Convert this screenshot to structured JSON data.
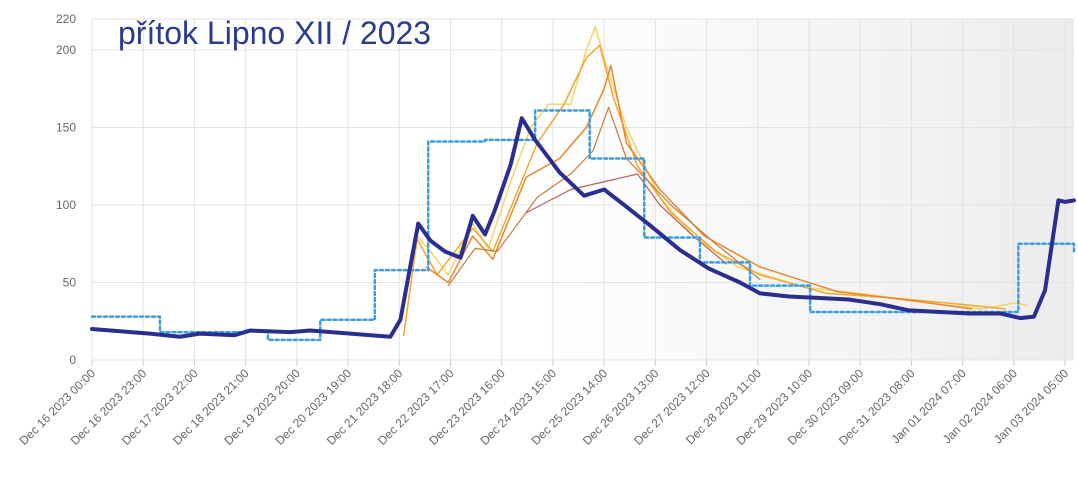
{
  "chart_data": {
    "type": "line",
    "title": "přítok Lipno XII / 2023",
    "xlim": [
      0,
      441
    ],
    "xticks": [
      {
        "value": 0,
        "label": "Dec 16 2023 00:00"
      },
      {
        "value": 23,
        "label": "Dec 16 2023 23:00"
      },
      {
        "value": 46,
        "label": "Dec 17 2023 22:00"
      },
      {
        "value": 69,
        "label": "Dec 18 2023 21:00"
      },
      {
        "value": 92,
        "label": "Dec 19 2023 20:00"
      },
      {
        "value": 115,
        "label": "Dec 20 2023 19:00"
      },
      {
        "value": 138,
        "label": "Dec 21 2023 18:00"
      },
      {
        "value": 161,
        "label": "Dec 22 2023 17:00"
      },
      {
        "value": 184,
        "label": "Dec 23 2023 16:00"
      },
      {
        "value": 207,
        "label": "Dec 24 2023 15:00"
      },
      {
        "value": 230,
        "label": "Dec 25 2023 14:00"
      },
      {
        "value": 253,
        "label": "Dec 26 2023 13:00"
      },
      {
        "value": 276,
        "label": "Dec 27 2023 12:00"
      },
      {
        "value": 299,
        "label": "Dec 28 2023 11:00"
      },
      {
        "value": 322,
        "label": "Dec 29 2023 10:00"
      },
      {
        "value": 345,
        "label": "Dec 30 2023 09:00"
      },
      {
        "value": 368,
        "label": "Dec 31 2023 08:00"
      },
      {
        "value": 391,
        "label": "Jan 01 2024 07:00"
      },
      {
        "value": 414,
        "label": "Jan 02 2024 06:00"
      },
      {
        "value": 437,
        "label": "Jan 03 2024 05:00"
      }
    ],
    "ylim": [
      0,
      220
    ],
    "yticks": [
      0,
      50,
      100,
      150,
      200,
      220
    ],
    "grid": true,
    "series": [
      {
        "color": "#f5d36b",
        "width": 1.5,
        "x": [
          140,
          146,
          152,
          160,
          171,
          178,
          188,
          197,
          205,
          215,
          222,
          226,
          231,
          240,
          255,
          270,
          290,
          320,
          350,
          380,
          400,
          415,
          420
        ],
        "values": [
          16,
          80,
          70,
          55,
          88,
          72,
          115,
          150,
          165,
          165,
          200,
          215,
          190,
          150,
          105,
          80,
          60,
          47,
          42,
          36,
          33,
          37,
          35
        ]
      },
      {
        "color": "#f0a830",
        "width": 1.5,
        "x": [
          140,
          146,
          155,
          171,
          180,
          190,
          200,
          212,
          222,
          228,
          234,
          245,
          260,
          280,
          300,
          330,
          360,
          390,
          410
        ],
        "values": [
          16,
          78,
          55,
          85,
          70,
          105,
          140,
          165,
          195,
          203,
          170,
          125,
          95,
          70,
          55,
          43,
          40,
          36,
          33
        ]
      },
      {
        "color": "#e8882a",
        "width": 1.5,
        "x": [
          150,
          160,
          171,
          180,
          195,
          210,
          222,
          230,
          233,
          240,
          255,
          275,
          300,
          335,
          370,
          395
        ],
        "values": [
          60,
          50,
          80,
          65,
          118,
          130,
          150,
          175,
          190,
          140,
          110,
          80,
          60,
          44,
          38,
          33
        ]
      },
      {
        "color": "#c97a3a",
        "width": 1.2,
        "x": [
          160,
          172,
          182,
          200,
          215,
          225,
          232,
          240,
          260,
          280,
          300
        ],
        "values": [
          48,
          72,
          70,
          105,
          120,
          135,
          163,
          130,
          100,
          75,
          52
        ]
      },
      {
        "color": "#b9605a",
        "width": 1.2,
        "x": [
          195,
          215,
          230,
          245,
          255,
          270,
          285
        ],
        "values": [
          95,
          110,
          115,
          120,
          100,
          80,
          62
        ]
      },
      {
        "color": "#3d9be0",
        "width": 2.5,
        "dash": true,
        "step": true,
        "x": [
          0,
          30.5,
          69,
          79,
          102.5,
          127,
          151,
          176.5,
          199,
          223.5,
          248,
          273,
          295.5,
          322.5,
          416,
          441
        ],
        "values": [
          28,
          18,
          19,
          13,
          26,
          58,
          141,
          142,
          161,
          130,
          79,
          63,
          48,
          31,
          75,
          70
        ]
      },
      {
        "color": "#2a2f8f",
        "width": 4,
        "x": [
          0,
          26,
          39.5,
          48.5,
          64,
          71,
          89,
          98,
          116,
          134,
          138.5,
          143,
          146.5,
          152,
          158.5,
          165.5,
          171,
          176.5,
          181,
          188,
          193,
          199,
          210,
          221,
          230,
          239,
          250.5,
          264,
          277,
          291,
          300,
          313,
          327,
          340,
          354,
          367,
          381,
          394,
          408,
          417,
          423,
          428,
          434,
          437,
          441
        ],
        "values": [
          20,
          17,
          15,
          17,
          16,
          19,
          18,
          19,
          17,
          15,
          26,
          61,
          88,
          77,
          70,
          66,
          93,
          81,
          97,
          126,
          156,
          142,
          121,
          106,
          110,
          100,
          87,
          71,
          59,
          50,
          43,
          41,
          40,
          39,
          36,
          32,
          31,
          30,
          30,
          27,
          28,
          45,
          103,
          102,
          103
        ]
      }
    ]
  }
}
